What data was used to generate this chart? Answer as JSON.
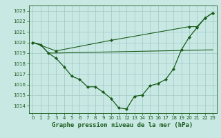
{
  "line1": {
    "x": [
      0,
      1,
      2,
      3,
      23
    ],
    "y": [
      1020.0,
      1019.8,
      1019.0,
      1019.0,
      1019.3
    ],
    "color": "#1a5c1a",
    "linewidth": 0.8,
    "zorder": 2
  },
  "line2": {
    "x": [
      0,
      1,
      2,
      3,
      4,
      5,
      6,
      7,
      8,
      9,
      10,
      11,
      12,
      13,
      14,
      15,
      16,
      17,
      18,
      19,
      20,
      21,
      22,
      23
    ],
    "y": [
      1020.0,
      1019.8,
      1019.0,
      1018.5,
      1017.7,
      1016.8,
      1016.5,
      1015.8,
      1015.8,
      1015.3,
      1014.7,
      1013.8,
      1013.7,
      1014.9,
      1015.0,
      1015.9,
      1016.1,
      1016.5,
      1017.5,
      1019.3,
      1020.5,
      1021.4,
      1022.3,
      1022.8
    ],
    "color": "#1a5c1a",
    "linewidth": 0.9,
    "marker": "D",
    "markersize": 2.0,
    "zorder": 3
  },
  "line3": {
    "x": [
      0,
      3,
      10,
      20,
      21,
      22,
      23
    ],
    "y": [
      1020.0,
      1019.2,
      1020.2,
      1021.5,
      1021.5,
      1022.3,
      1022.8
    ],
    "color": "#1a5c1a",
    "linewidth": 0.8,
    "marker": "D",
    "markersize": 2.0,
    "zorder": 2
  },
  "background_color": "#c8e8e4",
  "grid_color": "#a0c8c4",
  "axis_color": "#1a5c1a",
  "xlabel": "Graphe pression niveau de la mer (hPa)",
  "xlabel_color": "#1a5c1a",
  "xlabel_fontsize": 6.5,
  "xlim": [
    -0.5,
    23.5
  ],
  "ylim": [
    1013.3,
    1023.5
  ],
  "yticks": [
    1014,
    1015,
    1016,
    1017,
    1018,
    1019,
    1020,
    1021,
    1022,
    1023
  ],
  "xticks": [
    0,
    1,
    2,
    3,
    4,
    5,
    6,
    7,
    8,
    9,
    10,
    11,
    12,
    13,
    14,
    15,
    16,
    17,
    18,
    19,
    20,
    21,
    22,
    23
  ],
  "tick_fontsize": 5.0,
  "tick_color": "#1a5c1a"
}
